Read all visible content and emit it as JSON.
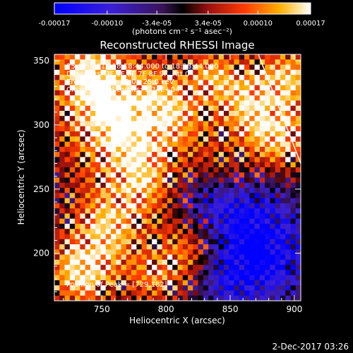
{
  "chart_data": {
    "type": "heatmap",
    "title": "Reconstructed RHESSI Image",
    "xlabel": "Heliocentric X (arcsec)",
    "ylabel": "Heliocentric Y (arcsec)",
    "xlim": [
      713,
      905
    ],
    "ylim": [
      163,
      355
    ],
    "x_ticks": [
      750,
      800,
      850,
      900
    ],
    "y_ticks": [
      200,
      250,
      300,
      350
    ],
    "colorbar": {
      "ticks": [
        "-0.00017",
        "-0.00010",
        "-3.4e-05",
        "3.4e-05",
        "0.00010",
        "0.00017"
      ],
      "tick_values": [
        -0.00017,
        -0.0001,
        -3.4e-05,
        3.4e-05,
        0.0001,
        0.00017
      ],
      "range": [
        -0.00017,
        0.00017
      ],
      "unit_label": "(photons cm⁻² s⁻¹ asec⁻²)"
    },
    "info_lines": [
      "25-Jun-2015 18:18:44.000 to 18:28:44.000",
      "Detectors: 3F 5F 6F 7F 8F 9F, Att 0",
      "Energy Range: 12.0 - 25.0 keV",
      "Clean     Total counts: 1.34E+04"
    ],
    "peak_label": "Position of Peak = [729,182]",
    "peak_position": [
      729,
      182
    ],
    "limb_line": [
      [
        872,
        355
      ],
      [
        905,
        270
      ]
    ]
  },
  "footer": {
    "timestamp": "2-Dec-2017 03:26"
  }
}
